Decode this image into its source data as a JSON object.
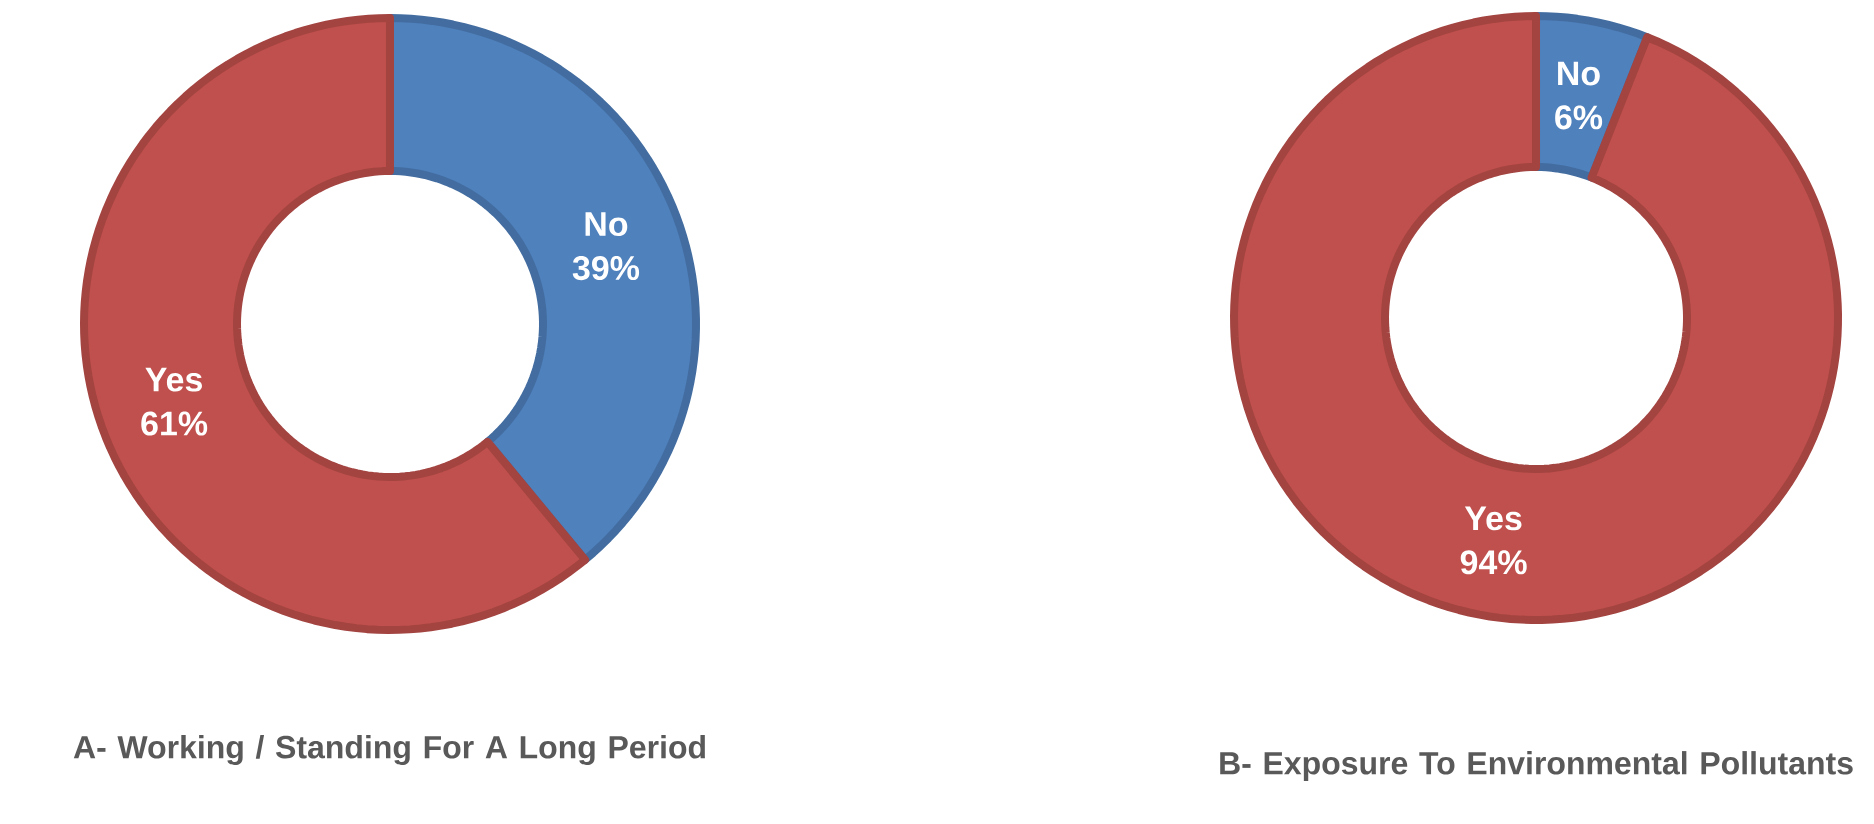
{
  "chart_data": [
    {
      "type": "donut",
      "title": "A- Working / Standing For A Long Period",
      "categories": [
        "No",
        "Yes"
      ],
      "values": [
        39,
        61
      ],
      "colors": [
        "#4f81bd",
        "#c0504d"
      ],
      "value_labels": [
        "39%",
        "61%"
      ]
    },
    {
      "type": "donut",
      "title": "B- Exposure To Environmental Pollutants",
      "categories": [
        "No",
        "Yes"
      ],
      "values": [
        6,
        94
      ],
      "colors": [
        "#4f81bd",
        "#c0504d"
      ],
      "value_labels": [
        "6%",
        "94%"
      ]
    }
  ]
}
